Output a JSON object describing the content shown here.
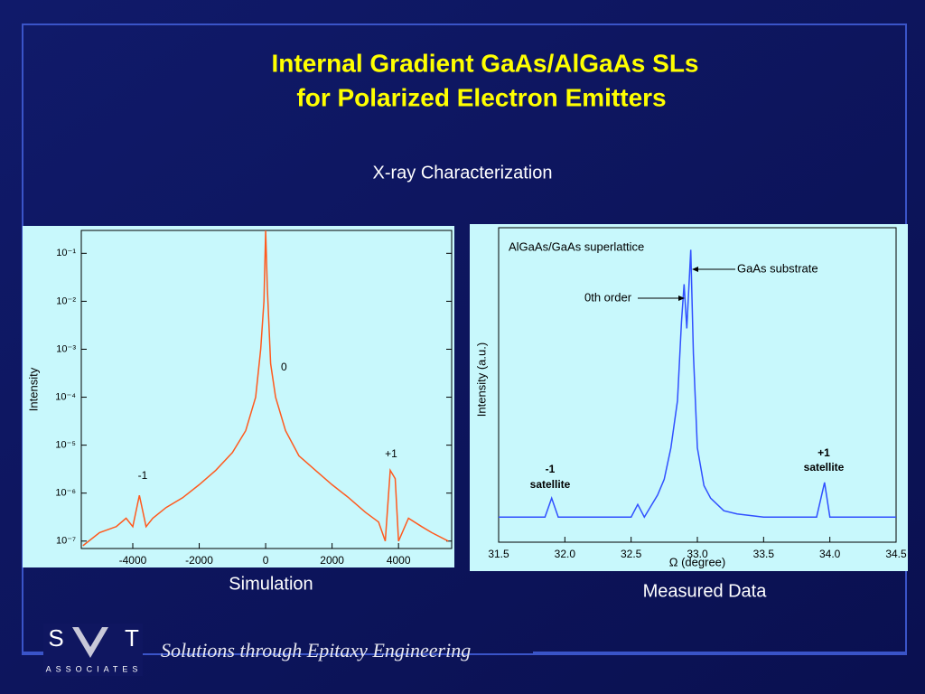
{
  "title": [
    "Internal Gradient GaAs/AlGaAs SLs",
    "for Polarized Electron Emitters"
  ],
  "subtitle": "X-ray Characterization",
  "footer": {
    "logo_left": "S",
    "logo_right": "T",
    "logo_sub": "ASSOCIATES",
    "tagline": "Solutions through Epitaxy Engineering"
  },
  "chart_data": [
    {
      "type": "line",
      "caption": "Simulation",
      "y_label": "Intensity",
      "log_y": true,
      "color": "#ff5a1e",
      "annotations": [
        "0",
        "-1",
        "+1"
      ],
      "x": [
        -5500,
        -5000,
        -4500,
        -4200,
        -4000,
        -3800,
        -3600,
        -3400,
        -3000,
        -2500,
        -2000,
        -1500,
        -1000,
        -600,
        -300,
        -150,
        -50,
        0,
        50,
        150,
        300,
        600,
        1000,
        1500,
        2000,
        2500,
        3000,
        3400,
        3600,
        3750,
        3900,
        4000,
        4300,
        4700,
        5000,
        5500
      ],
      "values": [
        8e-08,
        1.5e-07,
        2e-07,
        3e-07,
        2e-07,
        9e-07,
        2e-07,
        3e-07,
        5e-07,
        8e-07,
        1.5e-06,
        3e-06,
        7e-06,
        2e-05,
        0.0001,
        0.001,
        0.01,
        0.3,
        0.02,
        0.0005,
        0.0001,
        2e-05,
        6e-06,
        3e-06,
        1.5e-06,
        8e-07,
        4e-07,
        2.5e-07,
        1e-07,
        3e-06,
        2e-06,
        1e-07,
        3e-07,
        2e-07,
        1.5e-07,
        1e-07
      ],
      "xlim": [
        -5550,
        5600
      ],
      "xticks": [
        -4000,
        -2000,
        0,
        2000,
        4000
      ],
      "ylim": [
        7e-08,
        0.3
      ],
      "yticks": [
        {
          "value": 1e-07,
          "label": "10⁻⁷"
        },
        {
          "value": 1e-06,
          "label": "10⁻⁶"
        },
        {
          "value": 1e-05,
          "label": "10⁻⁵"
        },
        {
          "value": 0.0001,
          "label": "10⁻⁴"
        },
        {
          "value": 0.001,
          "label": "10⁻³"
        },
        {
          "value": 0.01,
          "label": "10⁻²"
        },
        {
          "value": 0.1,
          "label": "10⁻¹"
        }
      ]
    },
    {
      "type": "line",
      "caption": "Measured Data",
      "x_label": "Ω (degree)",
      "y_label": "Intensity (a.u.)",
      "log_y": false,
      "color": "#3050ff",
      "annotations": [
        "AlGaAs/GaAs superlattice",
        "GaAs substrate",
        "0th order",
        "-1",
        "satellite",
        "+1",
        "satellite"
      ],
      "x": [
        31.5,
        31.85,
        31.9,
        31.95,
        32.5,
        32.55,
        32.6,
        32.7,
        32.75,
        32.8,
        32.85,
        32.88,
        32.9,
        32.92,
        32.95,
        32.97,
        33.0,
        33.05,
        33.1,
        33.2,
        33.3,
        33.5,
        33.9,
        33.96,
        34.0,
        34.5
      ],
      "values": [
        8,
        8,
        14,
        8,
        8,
        12,
        8,
        15,
        20,
        30,
        45,
        70,
        82,
        68,
        93,
        60,
        30,
        18,
        14,
        10,
        9,
        8,
        8,
        19,
        8,
        8
      ],
      "xlim": [
        31.5,
        34.5
      ],
      "xticks": [
        31.5,
        {
          "value": 32,
          "label": "32.0"
        },
        32.5,
        {
          "value": 33,
          "label": "33.0"
        },
        33.5,
        {
          "value": 34,
          "label": "34.0"
        },
        34.5
      ],
      "ylim": [
        0,
        100
      ]
    }
  ]
}
